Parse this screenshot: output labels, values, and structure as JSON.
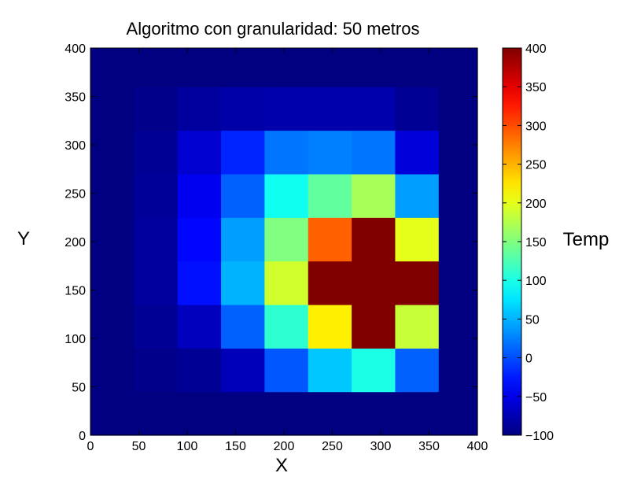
{
  "chart_data": {
    "type": "heatmap",
    "title": "Algoritmo con granularidad: 50 metros",
    "xlabel": "X",
    "ylabel": "Y",
    "colorbar_label": "Temp",
    "colormap": "jet",
    "xlim": [
      0,
      400
    ],
    "ylim": [
      0,
      400
    ],
    "clim": [
      -100,
      400
    ],
    "x_ticks": [
      "0",
      "50",
      "100",
      "150",
      "200",
      "250",
      "300",
      "350",
      "400"
    ],
    "y_ticks": [
      "0",
      "50",
      "100",
      "150",
      "200",
      "250",
      "300",
      "350",
      "400"
    ],
    "colorbar_ticks": [
      "−100",
      "−50",
      "0",
      "50",
      "100",
      "150",
      "200",
      "250",
      "300",
      "350",
      "400"
    ],
    "x_edges": [
      0,
      45,
      90,
      135,
      180,
      225,
      270,
      315,
      360,
      400
    ],
    "y_edges": [
      0,
      45,
      90,
      135,
      180,
      225,
      270,
      315,
      360,
      400
    ],
    "values": [
      [
        -100,
        -100,
        -100,
        -100,
        -100,
        -100,
        -100,
        -100,
        -100
      ],
      [
        -100,
        -95,
        -90,
        -72,
        5,
        60,
        100,
        10,
        -100
      ],
      [
        -100,
        -90,
        -70,
        10,
        110,
        220,
        400,
        185,
        -100
      ],
      [
        -100,
        -85,
        -30,
        50,
        190,
        400,
        400,
        400,
        -100
      ],
      [
        -100,
        -85,
        -35,
        40,
        150,
        290,
        400,
        200,
        -100
      ],
      [
        -100,
        -88,
        -45,
        10,
        95,
        135,
        170,
        40,
        -100
      ],
      [
        -100,
        -90,
        -60,
        -20,
        20,
        25,
        20,
        -55,
        -100
      ],
      [
        -100,
        -95,
        -85,
        -80,
        -78,
        -78,
        -78,
        -90,
        -100
      ],
      [
        -100,
        -100,
        -100,
        -100,
        -100,
        -100,
        -100,
        -100,
        -100
      ]
    ]
  }
}
